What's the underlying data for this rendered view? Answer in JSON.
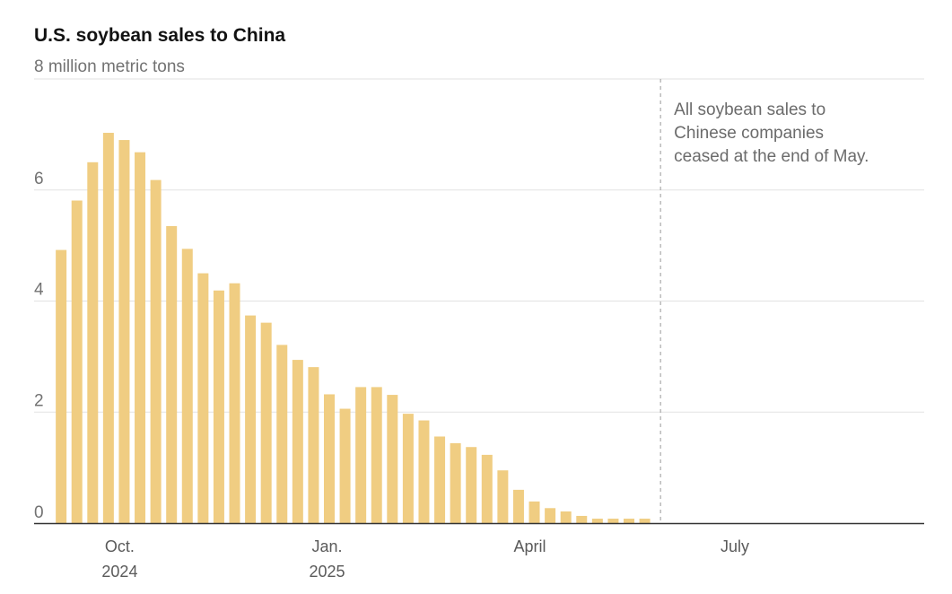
{
  "chart_data": {
    "type": "bar",
    "title": "U.S. soybean sales to China",
    "ylabel": "million metric tons",
    "ylim": [
      0,
      8
    ],
    "yticks": [
      0,
      2,
      4,
      6,
      8
    ],
    "ytick_labels": [
      "0",
      "2",
      "4",
      "6",
      "8 million metric tons"
    ],
    "xlim": [
      "2024-08-24",
      "2025-09-23"
    ],
    "xticks": [
      {
        "date": "2024-10-01",
        "label": "Oct.",
        "sublabel": "2024"
      },
      {
        "date": "2025-01-01",
        "label": "Jan.",
        "sublabel": "2025"
      },
      {
        "date": "2025-04-01",
        "label": "April",
        "sublabel": ""
      },
      {
        "date": "2025-07-01",
        "label": "July",
        "sublabel": ""
      }
    ],
    "grid": "horizontal",
    "bar_color": "#f0cd82",
    "x": [
      "2024-09-05",
      "2024-09-12",
      "2024-09-19",
      "2024-09-26",
      "2024-10-03",
      "2024-10-10",
      "2024-10-17",
      "2024-10-24",
      "2024-10-31",
      "2024-11-07",
      "2024-11-14",
      "2024-11-21",
      "2024-11-28",
      "2024-12-05",
      "2024-12-12",
      "2024-12-19",
      "2024-12-26",
      "2025-01-02",
      "2025-01-09",
      "2025-01-16",
      "2025-01-23",
      "2025-01-30",
      "2025-02-06",
      "2025-02-13",
      "2025-02-20",
      "2025-02-27",
      "2025-03-06",
      "2025-03-13",
      "2025-03-20",
      "2025-03-27",
      "2025-04-03",
      "2025-04-10",
      "2025-04-17",
      "2025-04-24",
      "2025-05-01",
      "2025-05-08",
      "2025-05-15",
      "2025-05-22"
    ],
    "values": [
      4.92,
      5.81,
      6.5,
      7.03,
      6.9,
      6.68,
      6.18,
      5.35,
      4.94,
      4.5,
      4.19,
      4.32,
      3.74,
      3.61,
      3.21,
      2.94,
      2.81,
      2.32,
      2.06,
      2.45,
      2.45,
      2.31,
      1.97,
      1.85,
      1.56,
      1.44,
      1.37,
      1.23,
      0.95,
      0.6,
      0.39,
      0.27,
      0.21,
      0.13,
      0.08,
      0.08,
      0.08,
      0.08
    ],
    "annotation": {
      "date": "2025-05-29",
      "style": "dashed vertical line",
      "lines": [
        "All soybean sales to",
        "Chinese companies",
        "ceased at the end of May."
      ]
    }
  }
}
